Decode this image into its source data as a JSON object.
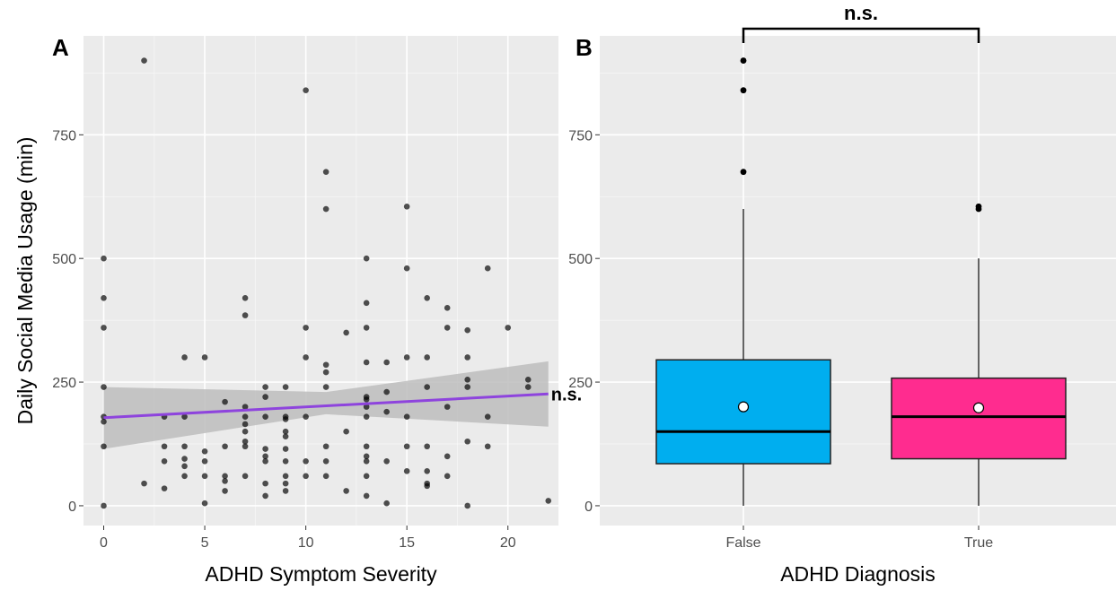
{
  "chart_data": [
    {
      "panel_label": "A",
      "type": "scatter",
      "xlabel": "ADHD Symptom Severity",
      "ylabel": "Daily Social Media Usage (min)",
      "xlim": [
        -1,
        22.5
      ],
      "ylim": [
        -40,
        950
      ],
      "x_ticks": [
        0,
        5,
        10,
        15,
        20
      ],
      "y_ticks": [
        0,
        250,
        500,
        750
      ],
      "grid": true,
      "background": "#ebebeb",
      "points": [
        [
          0,
          500
        ],
        [
          0,
          420
        ],
        [
          0,
          360
        ],
        [
          0,
          240
        ],
        [
          0,
          180
        ],
        [
          0,
          170
        ],
        [
          0,
          120
        ],
        [
          0,
          0
        ],
        [
          2,
          900
        ],
        [
          2,
          45
        ],
        [
          3,
          180
        ],
        [
          3,
          120
        ],
        [
          3,
          90
        ],
        [
          3,
          35
        ],
        [
          4,
          300
        ],
        [
          4,
          180
        ],
        [
          4,
          120
        ],
        [
          4,
          95
        ],
        [
          4,
          80
        ],
        [
          4,
          60
        ],
        [
          5,
          300
        ],
        [
          5,
          110
        ],
        [
          5,
          90
        ],
        [
          5,
          60
        ],
        [
          5,
          5
        ],
        [
          6,
          210
        ],
        [
          6,
          120
        ],
        [
          6,
          60
        ],
        [
          6,
          50
        ],
        [
          6,
          30
        ],
        [
          7,
          420
        ],
        [
          7,
          385
        ],
        [
          7,
          200
        ],
        [
          7,
          180
        ],
        [
          7,
          165
        ],
        [
          7,
          150
        ],
        [
          7,
          130
        ],
        [
          7,
          120
        ],
        [
          7,
          60
        ],
        [
          8,
          240
        ],
        [
          8,
          220
        ],
        [
          8,
          180
        ],
        [
          8,
          115
        ],
        [
          8,
          100
        ],
        [
          8,
          90
        ],
        [
          8,
          45
        ],
        [
          8,
          20
        ],
        [
          9,
          240
        ],
        [
          9,
          180
        ],
        [
          9,
          175
        ],
        [
          9,
          150
        ],
        [
          9,
          140
        ],
        [
          9,
          115
        ],
        [
          9,
          90
        ],
        [
          9,
          60
        ],
        [
          9,
          45
        ],
        [
          9,
          30
        ],
        [
          10,
          840
        ],
        [
          10,
          360
        ],
        [
          10,
          300
        ],
        [
          10,
          180
        ],
        [
          10,
          90
        ],
        [
          10,
          60
        ],
        [
          11,
          675
        ],
        [
          11,
          600
        ],
        [
          11,
          285
        ],
        [
          11,
          270
        ],
        [
          11,
          240
        ],
        [
          11,
          120
        ],
        [
          11,
          90
        ],
        [
          11,
          60
        ],
        [
          12,
          350
        ],
        [
          12,
          150
        ],
        [
          12,
          30
        ],
        [
          13,
          500
        ],
        [
          13,
          410
        ],
        [
          13,
          360
        ],
        [
          13,
          290
        ],
        [
          13,
          220
        ],
        [
          13,
          215
        ],
        [
          13,
          200
        ],
        [
          13,
          180
        ],
        [
          13,
          120
        ],
        [
          13,
          100
        ],
        [
          13,
          90
        ],
        [
          13,
          60
        ],
        [
          13,
          20
        ],
        [
          14,
          290
        ],
        [
          14,
          230
        ],
        [
          14,
          190
        ],
        [
          14,
          90
        ],
        [
          14,
          5
        ],
        [
          15,
          605
        ],
        [
          15,
          480
        ],
        [
          15,
          300
        ],
        [
          15,
          180
        ],
        [
          15,
          120
        ],
        [
          15,
          70
        ],
        [
          16,
          420
        ],
        [
          16,
          300
        ],
        [
          16,
          240
        ],
        [
          16,
          120
        ],
        [
          16,
          70
        ],
        [
          16,
          45
        ],
        [
          16,
          40
        ],
        [
          17,
          400
        ],
        [
          17,
          360
        ],
        [
          17,
          200
        ],
        [
          17,
          100
        ],
        [
          17,
          60
        ],
        [
          18,
          355
        ],
        [
          18,
          300
        ],
        [
          18,
          255
        ],
        [
          18,
          240
        ],
        [
          18,
          130
        ],
        [
          18,
          0
        ],
        [
          19,
          480
        ],
        [
          19,
          180
        ],
        [
          19,
          120
        ],
        [
          20,
          360
        ],
        [
          21,
          255
        ],
        [
          21,
          240
        ],
        [
          22,
          10
        ]
      ],
      "trend_line": {
        "x": [
          0,
          22
        ],
        "y": [
          178,
          226
        ],
        "color": "#8e44dd"
      },
      "confidence_band": {
        "x": [
          0,
          11,
          22
        ],
        "lower": [
          115,
          185,
          160
        ],
        "upper": [
          240,
          230,
          292
        ]
      },
      "annotation": "n.s."
    },
    {
      "panel_label": "B",
      "type": "box",
      "xlabel": "ADHD Diagnosis",
      "ylabel": "",
      "ylim": [
        -40,
        950
      ],
      "y_ticks": [
        0,
        250,
        500,
        750
      ],
      "categories": [
        "False",
        "True"
      ],
      "boxes": [
        {
          "category": "False",
          "min": 0,
          "q1": 85,
          "median": 150,
          "q3": 295,
          "max": 600,
          "mean": 200,
          "outliers": [
            675,
            840,
            900
          ],
          "color": "#00aeef"
        },
        {
          "category": "True",
          "min": 0,
          "q1": 95,
          "median": 180,
          "q3": 258,
          "max": 500,
          "mean": 198,
          "outliers": [
            600,
            605
          ],
          "color": "#ff2c8f"
        }
      ],
      "annotation": "n.s."
    }
  ]
}
